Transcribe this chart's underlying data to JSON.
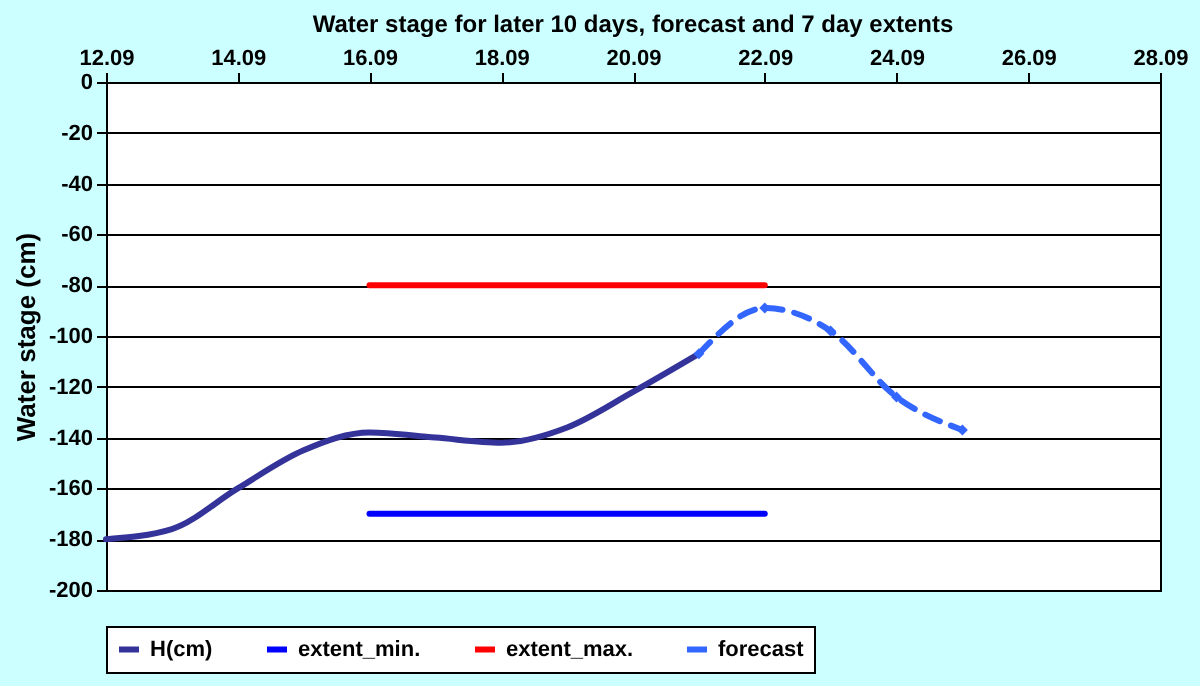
{
  "chart_data": {
    "type": "line",
    "title": "Water stage for later 10 days, forecast and 7 day extents",
    "ylabel": "Water stage (cm)",
    "xlim": [
      "--09-12",
      "--09-28"
    ],
    "xticks": [
      {
        "value": "--09-12",
        "label": "12.09"
      },
      {
        "value": "--09-14",
        "label": "14.09"
      },
      {
        "value": "--09-16",
        "label": "16.09"
      },
      {
        "value": "--09-18",
        "label": "18.09"
      },
      {
        "value": "--09-20",
        "label": "20.09"
      },
      {
        "value": "--09-22",
        "label": "22.09"
      },
      {
        "value": "--09-24",
        "label": "24.09"
      },
      {
        "value": "--09-26",
        "label": "26.09"
      },
      {
        "value": "--09-28",
        "label": "28.09"
      }
    ],
    "ylim": [
      -200,
      0
    ],
    "yticks": [
      -200,
      -180,
      -160,
      -140,
      -120,
      -100,
      -80,
      -60,
      -40,
      -20,
      0
    ],
    "grid": "y",
    "legend": "bottom",
    "series": [
      {
        "name": "H(cm)",
        "color": "#333399",
        "x": [
          "--09-12",
          "--09-13",
          "--09-14",
          "--09-15",
          "--09-16",
          "--09-17",
          "--09-18",
          "--09-19",
          "--09-20",
          "--09-21"
        ],
        "values": [
          -180,
          -176,
          -160,
          -145,
          -138,
          -140,
          -142,
          -136,
          -122,
          -107
        ],
        "marker": "none",
        "line_style": "solid"
      },
      {
        "name": "extent_min.",
        "color": "#0000ff",
        "x": [
          "--09-16",
          "--09-22"
        ],
        "values": [
          -170,
          -170
        ],
        "marker": "none",
        "line_style": "solid"
      },
      {
        "name": "extent_max.",
        "color": "#ff0000",
        "x": [
          "--09-16",
          "--09-22"
        ],
        "values": [
          -80,
          -80
        ],
        "marker": "none",
        "line_style": "solid"
      },
      {
        "name": "forecast",
        "color": "#3366ff",
        "x": [
          "--09-21",
          "--09-22",
          "--09-23",
          "--09-24",
          "--09-25"
        ],
        "values": [
          -107,
          -89,
          -98,
          -124,
          -137
        ],
        "marker": "diamond",
        "line_style": "dashed"
      }
    ]
  }
}
